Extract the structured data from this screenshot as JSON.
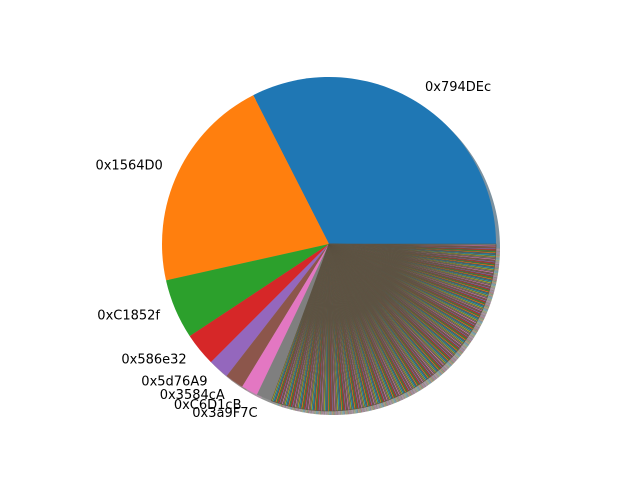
{
  "chart_data": {
    "type": "pie",
    "start_angle_deg": 0,
    "direction": "counterclockwise",
    "shadow": true,
    "palette": [
      "#1f77b4",
      "#ff7f0e",
      "#2ca02c",
      "#d62728",
      "#9467bd",
      "#8c564b",
      "#e377c2",
      "#7f7f7f",
      "#bcbd22",
      "#17becf"
    ],
    "slices": [
      {
        "label": "0x794DEc",
        "value": 32.5
      },
      {
        "label": "0x1564D0",
        "value": 21.0
      },
      {
        "label": "0xC1852f",
        "value": 5.8
      },
      {
        "label": "0x586e32",
        "value": 3.2
      },
      {
        "label": "0x5d76A9",
        "value": 2.0
      },
      {
        "label": "0x3584cA",
        "value": 1.8
      },
      {
        "label": "0xC6D1cB",
        "value": 1.6
      },
      {
        "label": "0x3a9F7C",
        "value": 1.5
      }
    ],
    "unlabeled_tail": {
      "count": 240,
      "total_value": 30.6
    }
  }
}
